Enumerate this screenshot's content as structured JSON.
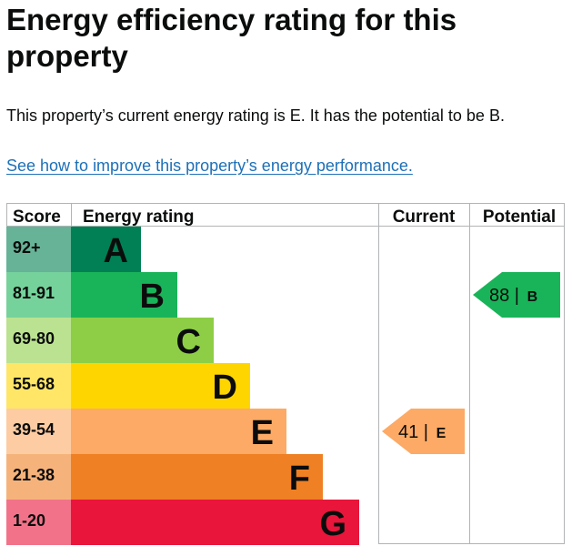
{
  "page": {
    "title": "Energy efficiency rating for this property",
    "summary": "This property’s current energy rating is E. It has the potential to be B.",
    "improve_link": "See how to improve this property’s energy performance."
  },
  "chart_data": {
    "type": "bar",
    "columns": {
      "score": "Score",
      "rating": "Energy rating",
      "current": "Current",
      "potential": "Potential"
    },
    "bands": [
      {
        "letter": "A",
        "range": "92+",
        "color": "#008054",
        "score_bg": "#66b398"
      },
      {
        "letter": "B",
        "range": "81-91",
        "color": "#19b459",
        "score_bg": "#75d29b"
      },
      {
        "letter": "C",
        "range": "69-80",
        "color": "#8dce46",
        "score_bg": "#bbe290"
      },
      {
        "letter": "D",
        "range": "55-68",
        "color": "#ffd500",
        "score_bg": "#ffe666"
      },
      {
        "letter": "E",
        "range": "39-54",
        "color": "#fcaa65",
        "score_bg": "#fdcca3"
      },
      {
        "letter": "F",
        "range": "21-38",
        "color": "#ef8023",
        "score_bg": "#f5b37b"
      },
      {
        "letter": "G",
        "range": "1-20",
        "color": "#e9153b",
        "score_bg": "#f27389"
      }
    ],
    "current": {
      "score": 41,
      "letter": "E",
      "color": "#fcaa65"
    },
    "potential": {
      "score": 88,
      "letter": "B",
      "color": "#19b459"
    }
  }
}
